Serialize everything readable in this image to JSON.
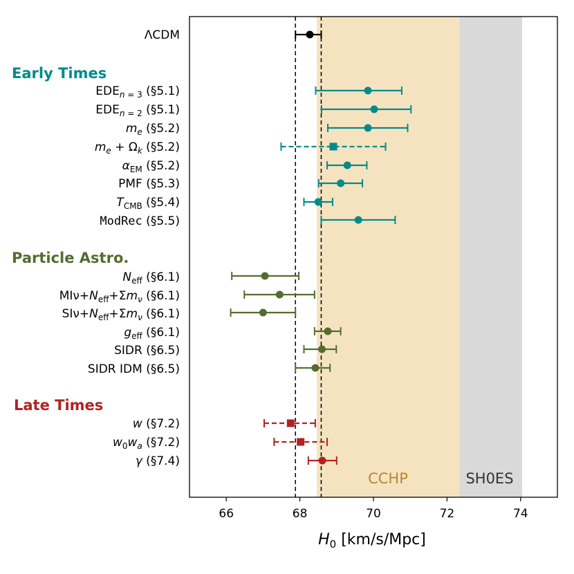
{
  "chart_data": {
    "type": "scatter",
    "title": "",
    "xlabel": "H₀ [km/s/Mpc]",
    "xlim": [
      65,
      75
    ],
    "xticks": [
      66,
      68,
      70,
      72,
      74
    ],
    "reference_lines": [
      67.88,
      68.58
    ],
    "bands": [
      {
        "name": "CCHP",
        "x": [
          68.46,
          72.34
        ],
        "color": "#f5e3c0",
        "label_color": "#b08a30"
      },
      {
        "name": "SH0ES",
        "x": [
          72.34,
          74.04
        ],
        "color": "#d9d9d9",
        "label_color": "#333333"
      }
    ],
    "groups": [
      {
        "name": "",
        "color": "#000000"
      },
      {
        "name": "Early Times",
        "color": "#008b8b"
      },
      {
        "name": "Particle Astro.",
        "color": "#556b2f"
      },
      {
        "name": "Late Times",
        "color": "#b22222"
      }
    ],
    "points": [
      {
        "group": 0,
        "label": "ΛCDM",
        "value": 68.27,
        "lo": 67.88,
        "hi": 68.58,
        "marker": "circle",
        "dashed": false
      },
      {
        "group": 1,
        "label": "EDE_n=3 (§5.1)",
        "value": 69.85,
        "lo": 68.43,
        "hi": 70.77,
        "marker": "circle",
        "dashed": false
      },
      {
        "group": 1,
        "label": "EDE_n=2 (§5.1)",
        "value": 70.02,
        "lo": 68.59,
        "hi": 71.02,
        "marker": "circle",
        "dashed": false
      },
      {
        "group": 1,
        "label": "m_e (§5.2)",
        "value": 69.85,
        "lo": 68.76,
        "hi": 70.93,
        "marker": "circle",
        "dashed": false
      },
      {
        "group": 1,
        "label": "m_e + Ω_k (§5.2)",
        "value": 68.91,
        "lo": 67.49,
        "hi": 70.33,
        "marker": "square",
        "dashed": true
      },
      {
        "group": 1,
        "label": "α_EM (§5.2)",
        "value": 69.29,
        "lo": 68.74,
        "hi": 69.82,
        "marker": "circle",
        "dashed": false
      },
      {
        "group": 1,
        "label": "PMF (§5.3)",
        "value": 69.11,
        "lo": 68.51,
        "hi": 69.7,
        "marker": "circle",
        "dashed": false
      },
      {
        "group": 1,
        "label": "T_CMB (§5.4)",
        "value": 68.5,
        "lo": 68.11,
        "hi": 68.89,
        "marker": "circle",
        "dashed": false
      },
      {
        "group": 1,
        "label": "ModRec (§5.5)",
        "value": 69.59,
        "lo": 68.58,
        "hi": 70.59,
        "marker": "circle",
        "dashed": false
      },
      {
        "group": 2,
        "label": "N_eff (§6.1)",
        "value": 67.05,
        "lo": 66.15,
        "hi": 67.97,
        "marker": "circle",
        "dashed": false
      },
      {
        "group": 2,
        "label": "MIν+N_eff+Σm_ν (§6.1)",
        "value": 67.45,
        "lo": 66.49,
        "hi": 68.4,
        "marker": "circle",
        "dashed": false
      },
      {
        "group": 2,
        "label": "SIν+N_eff+Σm_ν (§6.1)",
        "value": 67.0,
        "lo": 66.12,
        "hi": 67.88,
        "marker": "circle",
        "dashed": false
      },
      {
        "group": 2,
        "label": "g_eff (§6.1)",
        "value": 68.76,
        "lo": 68.4,
        "hi": 69.11,
        "marker": "circle",
        "dashed": false
      },
      {
        "group": 2,
        "label": "SIDR (§6.5)",
        "value": 68.6,
        "lo": 68.11,
        "hi": 68.99,
        "marker": "circle",
        "dashed": false
      },
      {
        "group": 2,
        "label": "SIDR IDM (§6.5)",
        "value": 68.42,
        "lo": 67.88,
        "hi": 68.82,
        "marker": "circle",
        "dashed": false
      },
      {
        "group": 3,
        "label": "w (§7.2)",
        "value": 67.75,
        "lo": 67.03,
        "hi": 68.42,
        "marker": "square",
        "dashed": true
      },
      {
        "group": 3,
        "label": "w₀w_a (§7.2)",
        "value": 68.02,
        "lo": 67.3,
        "hi": 68.74,
        "marker": "square",
        "dashed": true
      },
      {
        "group": 3,
        "label": "γ (§7.4)",
        "value": 68.61,
        "lo": 68.23,
        "hi": 69.0,
        "marker": "circle",
        "dashed": false
      }
    ]
  }
}
